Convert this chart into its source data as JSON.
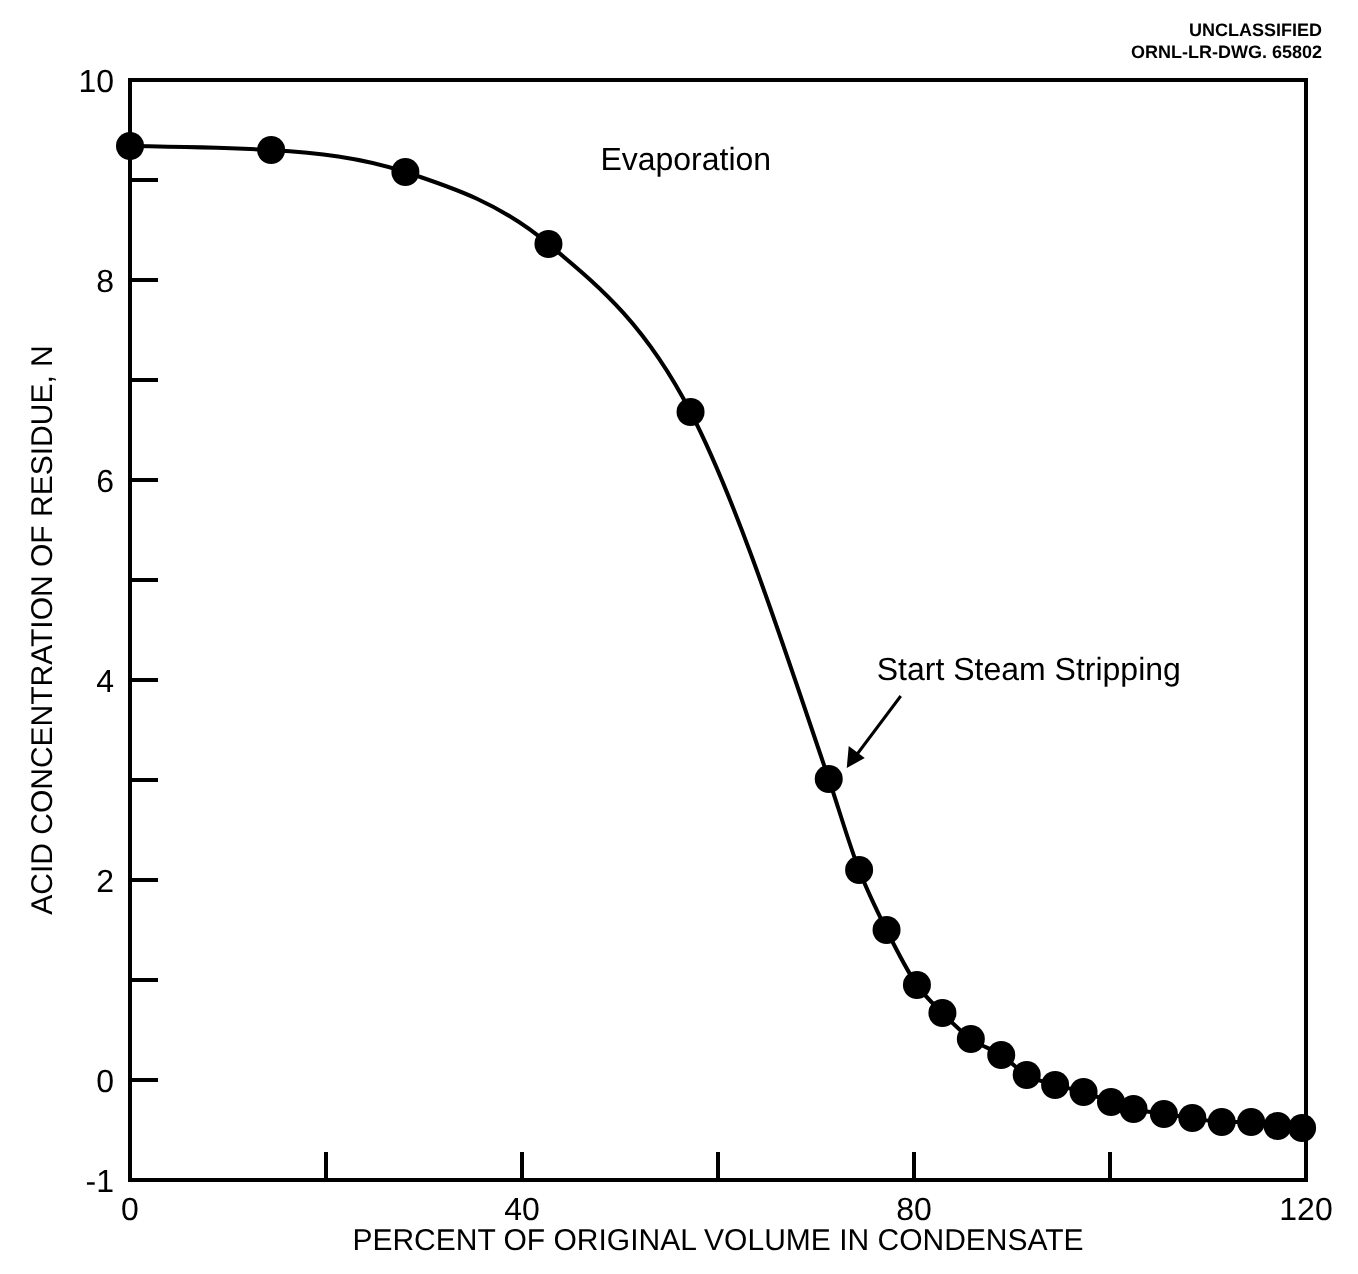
{
  "chart_data": {
    "type": "line",
    "xlabel": "PERCENT OF ORIGINAL VOLUME IN CONDENSATE",
    "ylabel": "ACID CONCENTRATION OF RESIDUE, N",
    "xlim": [
      0,
      120
    ],
    "xticks": [
      0,
      {
        "value": 20,
        "label": null
      },
      40,
      {
        "value": 60,
        "label": null
      },
      80,
      {
        "value": 100,
        "label": null
      },
      120
    ],
    "ylim": [
      -1,
      10
    ],
    "yticks": [
      -1,
      0,
      {
        "value": 1,
        "label": null
      },
      2,
      {
        "value": 3,
        "label": null
      },
      4,
      {
        "value": 5,
        "label": null
      },
      6,
      {
        "value": 7,
        "label": null
      },
      8,
      {
        "value": 9,
        "label": null
      },
      10
    ],
    "grid": false,
    "marker": "circle",
    "line_style": "solid",
    "series": [
      {
        "color": "#000000",
        "x": [
          0,
          14.4,
          28.1,
          42.7,
          57.2,
          71.3,
          74.4,
          77.2,
          80.3,
          82.9,
          85.8,
          88.9,
          91.5,
          94.4,
          97.3,
          100.1,
          102.4,
          105.5,
          108.4,
          111.4,
          114.4,
          117.1,
          119.6
        ],
        "values": [
          9.34,
          9.3,
          9.08,
          8.36,
          6.68,
          3.01,
          2.1,
          1.5,
          0.95,
          0.67,
          0.41,
          0.25,
          0.05,
          -0.05,
          -0.12,
          -0.22,
          -0.29,
          -0.34,
          -0.38,
          -0.42,
          -0.42,
          -0.46,
          -0.48
        ]
      }
    ],
    "annotations": [
      "UNCLASSIFIED",
      "ORNL-LR-DWG. 65802",
      "Evaporation",
      "Start Steam Stripping"
    ]
  }
}
